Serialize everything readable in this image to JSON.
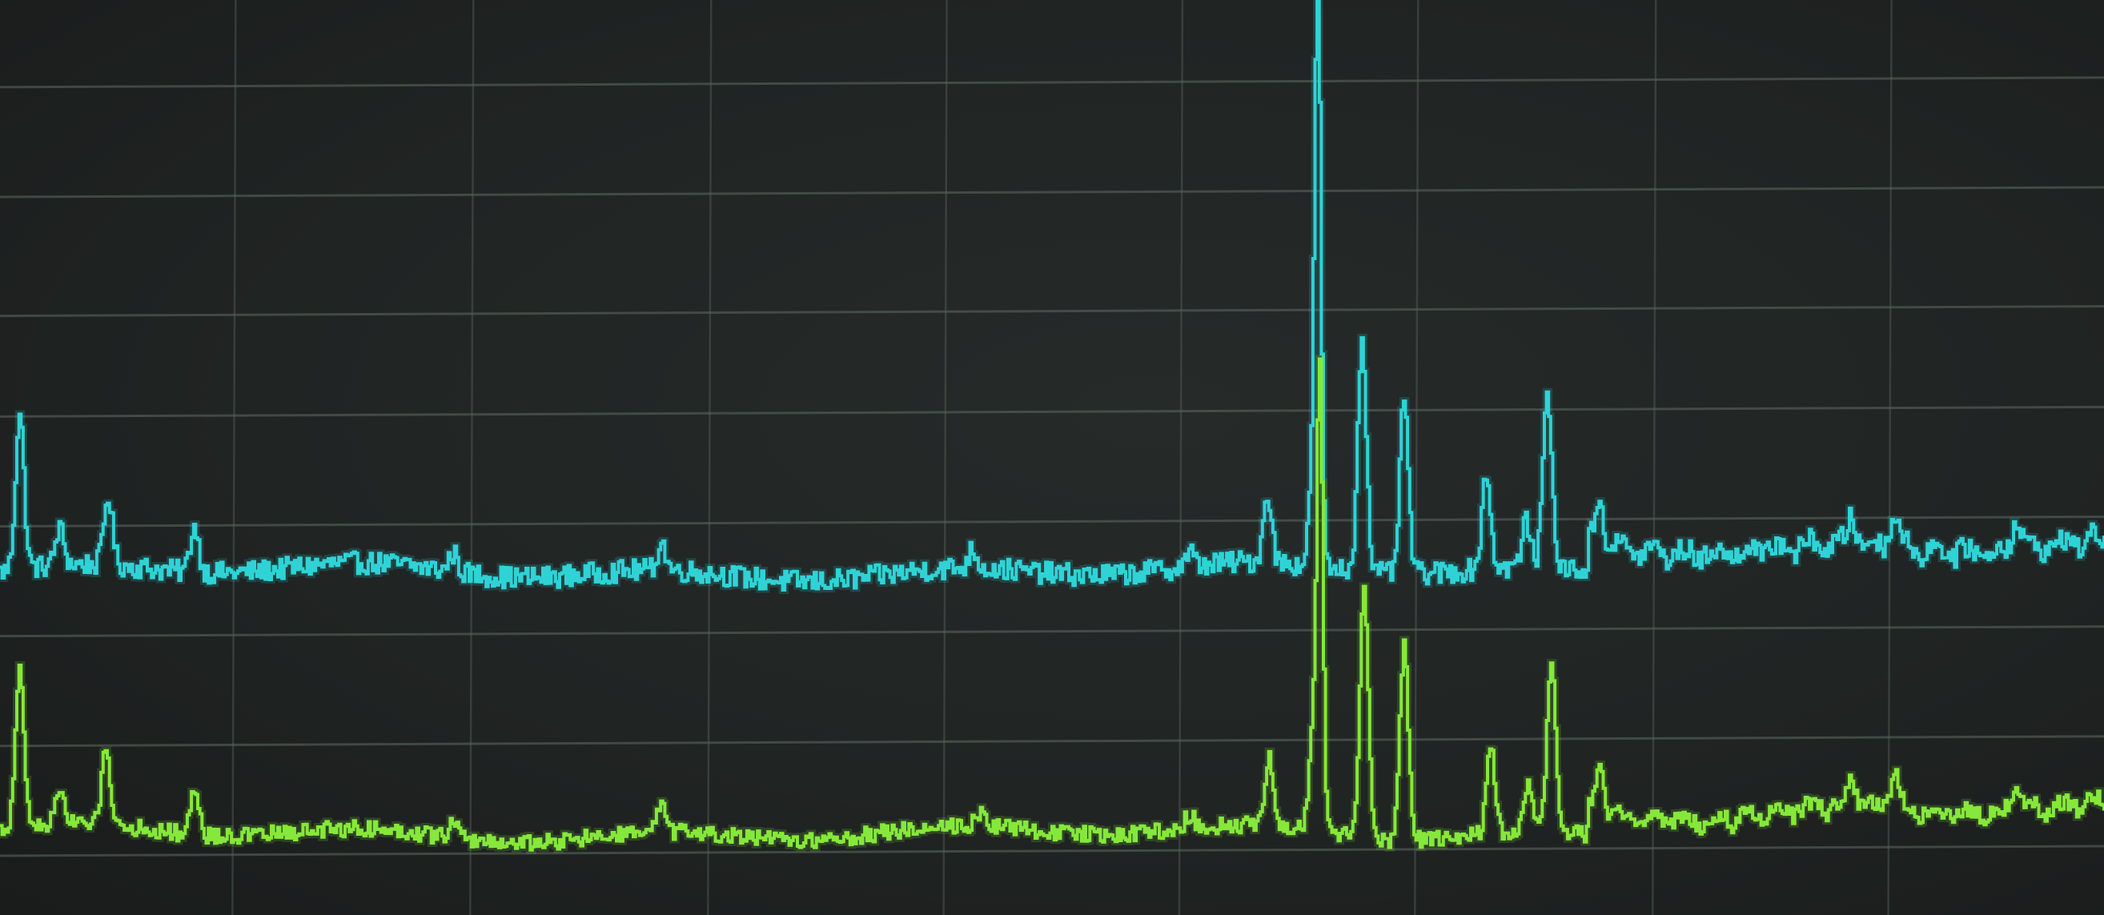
{
  "chart_data": {
    "type": "line",
    "title": "",
    "xlabel": "",
    "ylabel": "",
    "grid": true,
    "legend": "none",
    "x_range": [
      0,
      1000
    ],
    "y_range": [
      0,
      100
    ],
    "horizontal_gridlines": [
      7,
      19,
      31,
      43,
      55,
      66,
      79,
      91
    ],
    "vertical_gridlines": [
      112,
      225,
      338,
      450,
      562,
      674,
      787,
      899
    ],
    "series": [
      {
        "color": "#2fd3d6",
        "baseline": 37.5,
        "noise": 1.2,
        "peaks": [
          [
            9,
            17.0
          ],
          [
            28,
            4.0
          ],
          [
            51,
            7.5
          ],
          [
            92,
            5.0
          ],
          [
            215,
            2.0
          ],
          [
            314,
            3.0
          ],
          [
            462,
            2.0
          ],
          [
            565,
            1.5
          ],
          [
            602,
            7.5
          ],
          [
            624,
            11.0
          ],
          [
            626,
            60.0
          ],
          [
            647,
            26.0
          ],
          [
            667,
            19.0
          ],
          [
            706,
            10.5
          ],
          [
            725,
            5.0
          ],
          [
            735,
            20.0
          ],
          [
            760,
            5.0
          ],
          [
            880,
            3.0
          ],
          [
            900,
            4.0
          ],
          [
            958,
            3.5
          ]
        ],
        "plateau": [
          755,
          1000,
          3.5
        ]
      },
      {
        "color": "#86e83a",
        "baseline": 8.9,
        "noise": 0.9,
        "peaks": [
          [
            9,
            17.0
          ],
          [
            28,
            4.0
          ],
          [
            50,
            8.5
          ],
          [
            92,
            5.0
          ],
          [
            215,
            2.0
          ],
          [
            314,
            3.0
          ],
          [
            465,
            1.5
          ],
          [
            565,
            1.5
          ],
          [
            603,
            7.5
          ],
          [
            624,
            12.0
          ],
          [
            627,
            48.0
          ],
          [
            648,
            27.0
          ],
          [
            667,
            21.0
          ],
          [
            708,
            10.0
          ],
          [
            726,
            5.0
          ],
          [
            737,
            19.0
          ],
          [
            760,
            5.0
          ],
          [
            880,
            3.0
          ],
          [
            900,
            4.0
          ],
          [
            958,
            3.5
          ]
        ],
        "plateau": [
          755,
          1000,
          3.0
        ]
      }
    ]
  }
}
